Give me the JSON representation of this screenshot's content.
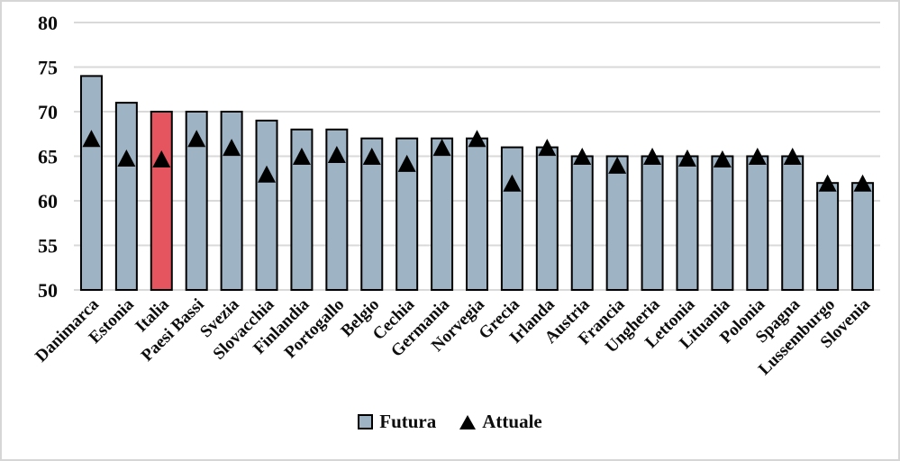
{
  "figure": {
    "background": "#ffffff",
    "frame_color": "#d6d6d6"
  },
  "chart_data": {
    "type": "bar",
    "title": "",
    "xlabel": "",
    "ylabel": "",
    "categories": [
      "Danimarca",
      "Estonia",
      "Italia",
      "Paesi Bassi",
      "Svezia",
      "Slovacchia",
      "Finlandia",
      "Portogallo",
      "Belgio",
      "Cechia",
      "Germania",
      "Norvegia",
      "Grecia",
      "Irlanda",
      "Austria",
      "Francia",
      "Ungheria",
      "Lettonia",
      "Lituania",
      "Polonia",
      "Spagna",
      "Lussemburgo",
      "Slovenia"
    ],
    "series": [
      {
        "name": "Futura",
        "type": "bar",
        "color": "#9EB3C3",
        "border_color": "#000000",
        "highlight_category": "Italia",
        "highlight_color": "#E4555F",
        "values": [
          74,
          71,
          70,
          70,
          70,
          69,
          68,
          68,
          67,
          67,
          67,
          67,
          66,
          66,
          65,
          65,
          65,
          65,
          65,
          65,
          65,
          62,
          62
        ]
      },
      {
        "name": "Attuale",
        "type": "scatter",
        "marker": "triangle",
        "color": "#000000",
        "values": [
          67,
          64.8,
          64.7,
          67,
          66,
          63,
          65,
          65.2,
          65,
          64.2,
          66,
          67,
          62,
          66,
          65,
          64,
          65,
          64.8,
          64.7,
          65,
          65,
          62,
          62
        ]
      }
    ],
    "ylim": [
      50,
      80
    ],
    "yticks": [
      50,
      55,
      60,
      65,
      70,
      75,
      80
    ],
    "grid": true,
    "gridline_color": "#D9D9D9",
    "legend_position": "bottom",
    "legend": [
      {
        "label": "Futura",
        "marker": "square"
      },
      {
        "label": "Attuale",
        "marker": "triangle"
      }
    ]
  }
}
